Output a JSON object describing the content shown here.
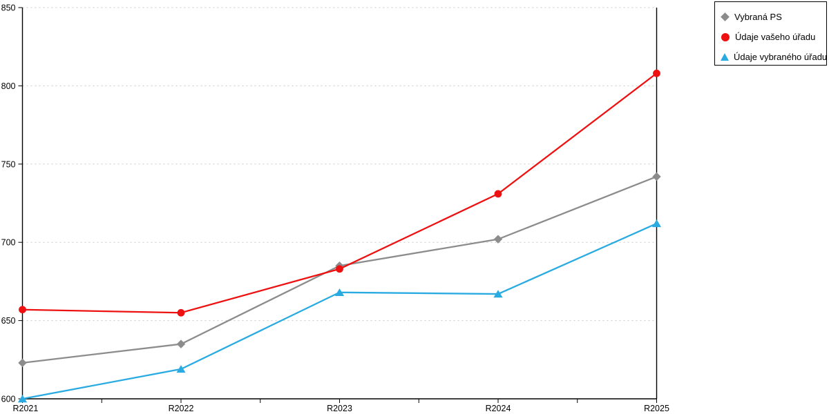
{
  "chart_data": {
    "type": "line",
    "title": "",
    "xlabel": "",
    "ylabel": "",
    "categories": [
      "R2021",
      "R2022",
      "R2023",
      "R2024",
      "R2025"
    ],
    "series": [
      {
        "name": "Vybraná PS",
        "marker": "diamond",
        "color": "#8C8C8C",
        "values": [
          623,
          635,
          685,
          702,
          742
        ]
      },
      {
        "name": "Údaje vašeho úřadu",
        "marker": "circle",
        "color": "#EE1111",
        "values": [
          657,
          655,
          683,
          731,
          808
        ]
      },
      {
        "name": "Údaje vybraného úřadu",
        "marker": "triangle",
        "color": "#29ABE2",
        "values": [
          600,
          619,
          668,
          667,
          712
        ]
      }
    ],
    "ylim": [
      600,
      850
    ],
    "yticks": [
      600,
      650,
      700,
      750,
      800,
      850
    ],
    "ytick_labels": [
      "600",
      "650",
      "700",
      "750",
      "800",
      "850"
    ],
    "grid": "horizontal-dotted",
    "grid_color": "#C8C8C8",
    "axis_color": "#000000",
    "tick_label_color": "#000000",
    "legend_position": "top-right",
    "minor_xticks_between_categories": true
  }
}
